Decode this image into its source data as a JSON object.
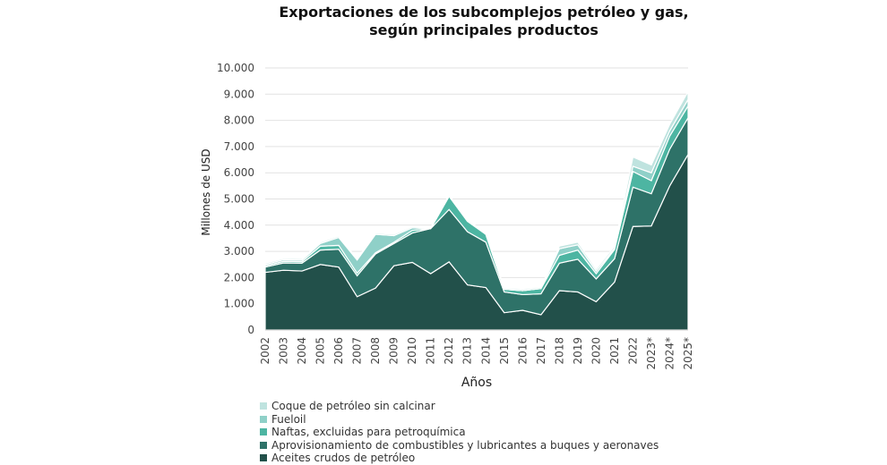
{
  "chart_data": {
    "type": "area",
    "stacked": true,
    "title": "Exportaciones de los subcomplejos petróleo y gas, según principales productos",
    "title_lines": [
      "Exportaciones de los subcomplejos petróleo y gas,",
      "según principales productos"
    ],
    "xlabel": "Años",
    "ylabel": "Millones de USD",
    "ylim": [
      0,
      10000
    ],
    "yticks": [
      0,
      1000,
      2000,
      3000,
      4000,
      5000,
      6000,
      7000,
      8000,
      9000,
      10000
    ],
    "ytick_labels": [
      "0",
      "1.000",
      "2.000",
      "3.000",
      "4.000",
      "5.000",
      "6.000",
      "7.000",
      "8.000",
      "9.000",
      "10.000"
    ],
    "grid": true,
    "legend_placement": "bottom",
    "categories": [
      "2002",
      "2003",
      "2004",
      "2005",
      "2006",
      "2007",
      "2008",
      "2009",
      "2010",
      "2011",
      "2012",
      "2013",
      "2014",
      "2015",
      "2016",
      "2017",
      "2018",
      "2019",
      "2020",
      "2021",
      "2022",
      "2023*",
      "2024*",
      "2025*"
    ],
    "series": [
      {
        "name": "Aceites crudos de petróleo",
        "color": "#22504a",
        "values": [
          2200,
          2280,
          2250,
          2500,
          2400,
          1270,
          1600,
          2450,
          2580,
          2150,
          2600,
          1720,
          1620,
          660,
          750,
          580,
          1500,
          1450,
          1080,
          1830,
          3950,
          3970,
          5500,
          6700
        ]
      },
      {
        "name": "Aprovisionamiento de combustibles y lubricantes a buques y aeronaves",
        "color": "#2e7268",
        "values": [
          200,
          280,
          300,
          550,
          680,
          800,
          1300,
          850,
          1120,
          1720,
          2000,
          2030,
          1730,
          790,
          600,
          800,
          1050,
          1250,
          870,
          890,
          1500,
          1230,
          1400,
          1400
        ]
      },
      {
        "name": "Naftas, excluidas para petroquímica",
        "color": "#4db5a2",
        "values": [
          50,
          60,
          60,
          150,
          150,
          100,
          50,
          50,
          100,
          0,
          500,
          400,
          300,
          100,
          150,
          200,
          300,
          350,
          200,
          350,
          600,
          500,
          500,
          450
        ]
      },
      {
        "name": "Fueloil",
        "color": "#8fd0c8",
        "values": [
          50,
          60,
          60,
          100,
          300,
          500,
          700,
          250,
          100,
          0,
          0,
          0,
          0,
          0,
          0,
          0,
          250,
          200,
          100,
          50,
          200,
          300,
          200,
          250
        ]
      },
      {
        "name": "Coque de petróleo sin calcinar",
        "color": "#bfe3df",
        "values": [
          50,
          50,
          50,
          50,
          50,
          50,
          50,
          50,
          50,
          30,
          50,
          50,
          50,
          50,
          50,
          50,
          100,
          100,
          80,
          80,
          350,
          300,
          250,
          300
        ]
      }
    ]
  }
}
